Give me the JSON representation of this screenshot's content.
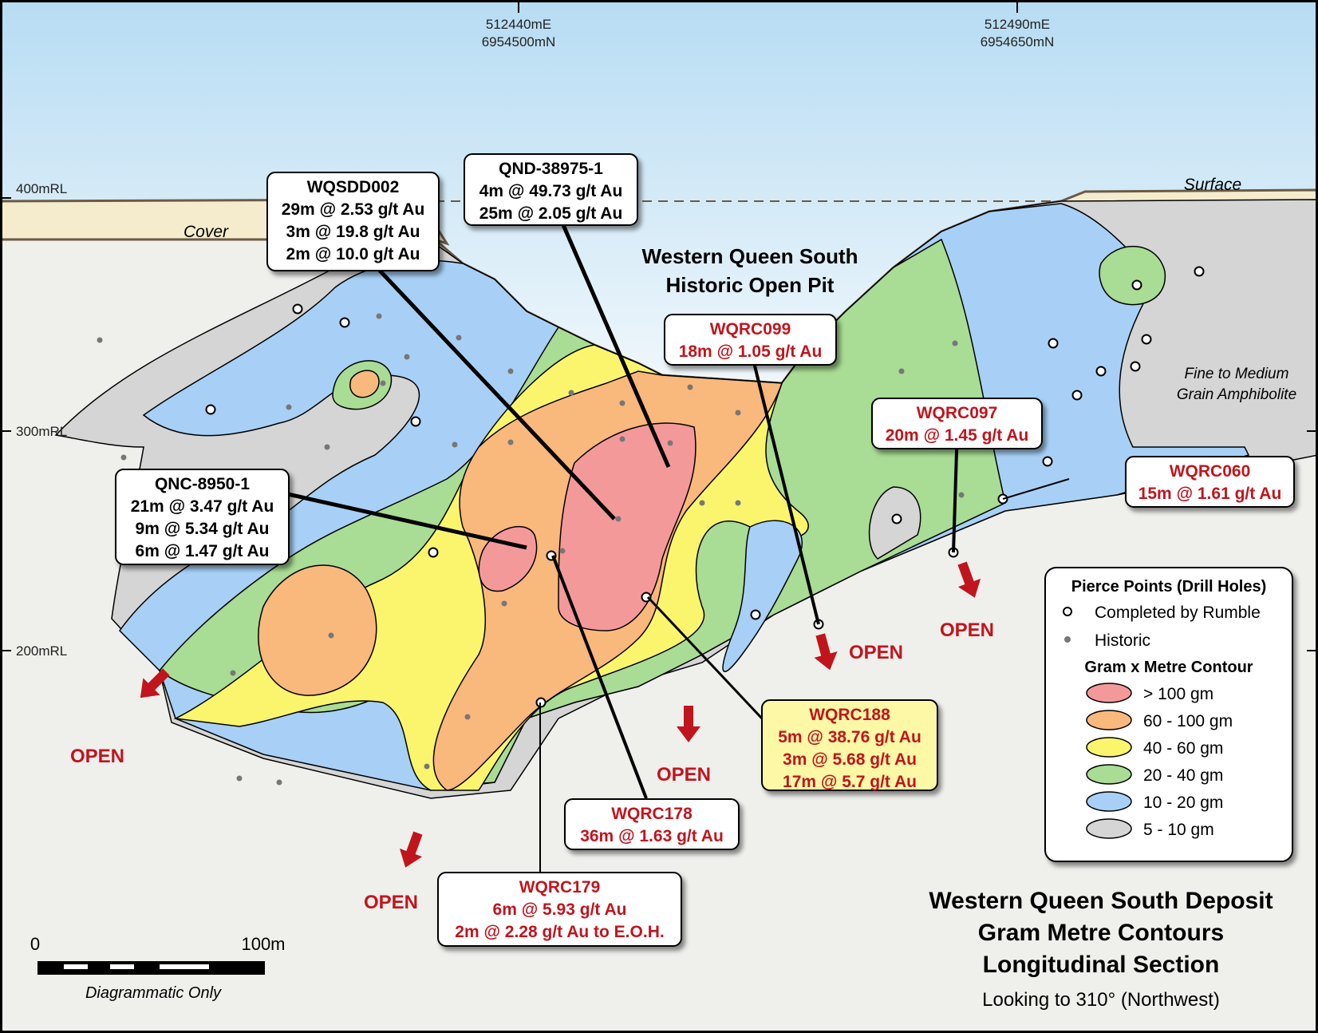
{
  "coords": [
    {
      "east": "512440mE",
      "north": "6954500mN"
    },
    {
      "east": "512490mE",
      "north": "6954650mN"
    }
  ],
  "rl_labels": [
    "400mRL",
    "300mRL",
    "200mRL"
  ],
  "surface_label": "Surface",
  "cover_label": "Cover",
  "pit_label": [
    "Western Queen South",
    "Historic Open Pit"
  ],
  "rock_label": [
    "Fine to Medium",
    "Grain Amphibolite"
  ],
  "open_label": "OPEN",
  "callouts": [
    {
      "title": "WQSDD002",
      "lines": [
        "29m @ 2.53 g/t Au",
        "3m @ 19.8 g/t Au",
        "2m @ 10.0 g/t Au"
      ],
      "style": "historic"
    },
    {
      "title": "QND-38975-1",
      "lines": [
        "4m @ 49.73 g/t Au",
        "25m @ 2.05 g/t Au"
      ],
      "style": "historic"
    },
    {
      "title": "QNC-8950-1",
      "lines": [
        "21m @ 3.47 g/t Au",
        "9m @ 5.34 g/t Au",
        "6m @ 1.47 g/t Au"
      ],
      "style": "historic"
    },
    {
      "title": "WQRC099",
      "lines": [
        "18m @ 1.05 g/t Au"
      ],
      "style": "rumble"
    },
    {
      "title": "WQRC097",
      "lines": [
        "20m @ 1.45 g/t Au"
      ],
      "style": "rumble"
    },
    {
      "title": "WQRC060",
      "lines": [
        "15m @ 1.61 g/t Au"
      ],
      "style": "rumble"
    },
    {
      "title": "WQRC188",
      "lines": [
        "5m @ 38.76 g/t Au",
        "3m @ 5.68 g/t Au",
        "17m @ 5.7 g/t Au"
      ],
      "style": "highlight"
    },
    {
      "title": "WQRC178",
      "lines": [
        "36m @ 1.63 g/t Au"
      ],
      "style": "rumble"
    },
    {
      "title": "WQRC179",
      "lines": [
        "6m @ 5.93 g/t Au",
        "2m @ 2.28 g/t Au to E.O.H."
      ],
      "style": "rumble"
    }
  ],
  "legend": {
    "pierce_title": "Pierce Points (Drill Holes)",
    "completed": "Completed by Rumble",
    "historic": "Historic",
    "contour_title": "Gram x Metre Contour",
    "contours": [
      {
        "label": "> 100 gm",
        "color": "#f4999a"
      },
      {
        "label": "60 - 100 gm",
        "color": "#f9b87c"
      },
      {
        "label": "40 - 60 gm",
        "color": "#fbf56e"
      },
      {
        "label": "20 - 40 gm",
        "color": "#a9dc94"
      },
      {
        "label": "10 - 20 gm",
        "color": "#a8d0f6"
      },
      {
        "label": "5 - 10 gm",
        "color": "#d5d5d5"
      }
    ]
  },
  "title": {
    "line1": "Western Queen South Deposit",
    "line2": "Gram Metre Contours",
    "line3": "Longitudinal Section",
    "line4": "Looking to 310° (Northwest)"
  },
  "scale": {
    "zero": "0",
    "end": "100m",
    "note": "Diagrammatic Only"
  },
  "colors": {
    "sky_top": "#b7dcf3",
    "cover": "#f5ecce",
    "ground": "#efefec",
    "red_text": "#c0151d",
    "highlight_box": "#fdf8a6"
  }
}
